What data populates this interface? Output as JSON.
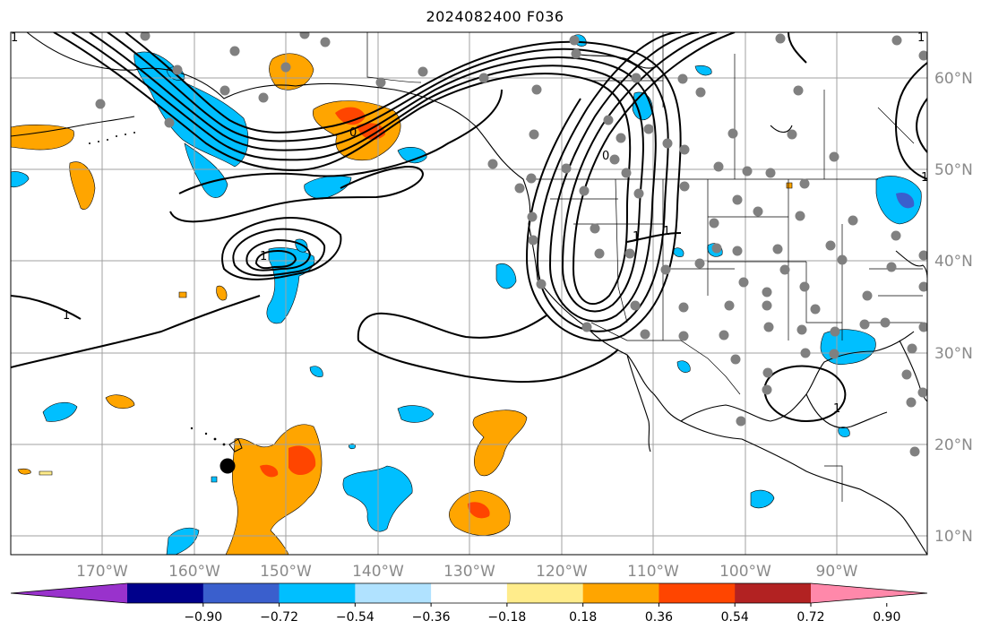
{
  "title": "2024082400 F036",
  "map": {
    "longitude_labels": [
      "170°W",
      "160°W",
      "150°W",
      "140°W",
      "130°W",
      "120°W",
      "110°W",
      "100°W",
      "90°W"
    ],
    "latitude_labels": [
      "60°N",
      "50°N",
      "40°N",
      "30°N",
      "20°N",
      "10°N"
    ],
    "contour_labels": [
      "1",
      "1",
      "1",
      "1",
      "0",
      "0",
      "1",
      "1",
      "1",
      "1"
    ],
    "station_markers": "gray",
    "highlight_marker": "black"
  },
  "colorbar": {
    "tick_labels": [
      "−0.90",
      "−0.72",
      "−0.54",
      "−0.36",
      "−0.18",
      "0.18",
      "0.36",
      "0.54",
      "0.72",
      "0.90"
    ],
    "colors": [
      "#9932cc",
      "#00008b",
      "#3a5fcd",
      "#00bfff",
      "#b0e2ff",
      "#ffffff",
      "#ffec8b",
      "#ffa500",
      "#ff4500",
      "#b22222",
      "#ff88aa"
    ]
  }
}
